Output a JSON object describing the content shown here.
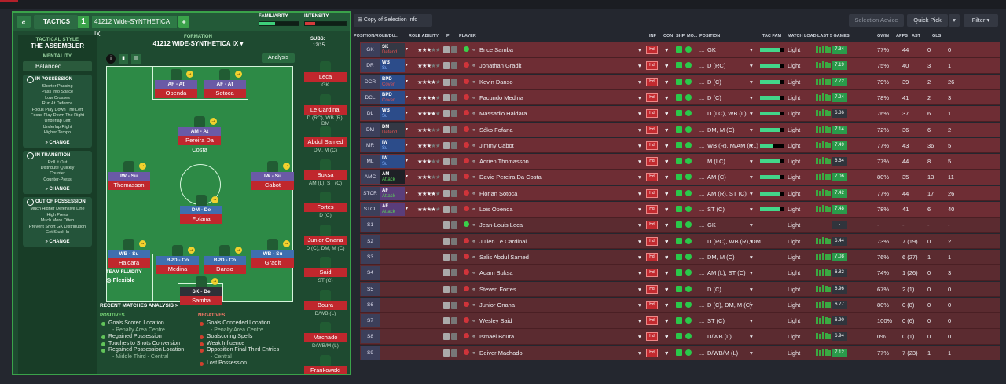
{
  "left": {
    "tab": "TACTICS",
    "slot": "1",
    "tactic_name": "41212 Wide-SYNTHETICA IX",
    "familiarity_label": "FAMILIARITY",
    "intensity_label": "INTENSITY",
    "style_label": "TACTICAL STYLE",
    "style": "THE ASSEMBLER",
    "mentality_label": "MENTALITY",
    "mentality": "Balanced",
    "in_possession": {
      "title": "IN POSSESSION",
      "items": [
        "Shorter Passing",
        "Pass Into Space",
        "Low Crosses",
        "Run At Defence",
        "Focus Play Down The Left",
        "Focus Play Down The Right",
        "Underlap Left",
        "Underlap Right",
        "Higher Tempo"
      ],
      "change": "CHANGE"
    },
    "in_transition": {
      "title": "IN TRANSITION",
      "items": [
        "Roll It Out",
        "Distribute Quickly",
        "Counter",
        "Counter-Press"
      ],
      "change": "CHANGE"
    },
    "out_of_possession": {
      "title": "OUT OF POSSESSION",
      "items": [
        "Much Higher Defensive Line",
        "High Press",
        "Much More Often",
        "Prevent Short GK Distribution",
        "Get Stuck In"
      ],
      "change": "CHANGE"
    },
    "formation_label": "FORMATION",
    "formation": "41212 WIDE-SYNTHETICA IX",
    "subs_label": "SUBS:",
    "subs": "12/15",
    "analysis": "Analysis",
    "fluidity_label": "TEAM FLUIDITY",
    "fluidity": "Flexible",
    "players": [
      {
        "role": "AF - At",
        "name": "Openda"
      },
      {
        "role": "AF - At",
        "name": "Sotoca"
      },
      {
        "role": "AM - At",
        "name": "Pereira Da Costa"
      },
      {
        "role": "IW - Su",
        "name": "Thomasson"
      },
      {
        "role": "IW - Su",
        "name": "Cabot"
      },
      {
        "role": "DM - De",
        "name": "Fofana"
      },
      {
        "role": "WB - Su",
        "name": "Haidara"
      },
      {
        "role": "BPD - Co",
        "name": "Medina"
      },
      {
        "role": "BPD - Co",
        "name": "Danso"
      },
      {
        "role": "WB - Su",
        "name": "Gradit"
      },
      {
        "role": "SK - De",
        "name": "Samba"
      }
    ],
    "subs_list": [
      {
        "name": "Leca",
        "pos": "GK"
      },
      {
        "name": "Le Cardinal",
        "pos": "D (RC), WB (R), DM"
      },
      {
        "name": "Abdul Samed",
        "pos": "DM, M (C)"
      },
      {
        "name": "Buksa",
        "pos": "AM (L), ST (C)"
      },
      {
        "name": "Fortes",
        "pos": "D (C)"
      },
      {
        "name": "Junior Onana",
        "pos": "D (C), DM, M (C)"
      },
      {
        "name": "Said",
        "pos": "ST (C)"
      },
      {
        "name": "Boura",
        "pos": "D/WB (L)"
      },
      {
        "name": "Machado",
        "pos": "D/WB/M (L)"
      },
      {
        "name": "Frankowski",
        "pos": ""
      }
    ],
    "recent": {
      "title": "RECENT MATCHES ANALYSIS >",
      "pos_label": "POSITIVES",
      "neg_label": "NEGATIVES",
      "positives": [
        {
          "t": "Goals Scored Location"
        },
        {
          "t": "- Penalty Area Centre",
          "s": true
        },
        {
          "t": "Regained Possession"
        },
        {
          "t": "Touches to Shots Conversion"
        },
        {
          "t": "Regained Possession Location"
        },
        {
          "t": "- Middle Third - Central",
          "s": true
        }
      ],
      "negatives": [
        {
          "t": "Goals Conceded Location"
        },
        {
          "t": "- Penalty Area Centre",
          "s": true
        },
        {
          "t": "Goalscoring Spells"
        },
        {
          "t": "Weak Influence"
        },
        {
          "t": "Opposition Final Third Entries"
        },
        {
          "t": "- Central",
          "s": true
        },
        {
          "t": "Lost Possession"
        }
      ]
    }
  },
  "right": {
    "copy_btn": "Copy of Selection Info",
    "sel_advice": "Selection Advice",
    "quick_pick": "Quick Pick",
    "filter": "Filter",
    "columns": [
      "POSITION/ROLE/DU...",
      "ROLE ABILITY",
      "PI",
      "PLAYER",
      "INF",
      "CON",
      "SHP",
      "MO...",
      "POSITION",
      "TAC FAM",
      "MATCH LOAD",
      "LAST 5 GAMES",
      "GWIN",
      "APPS",
      "AST",
      "GLS"
    ],
    "rows": [
      {
        "pos": "GK",
        "role": "SK",
        "duty": "Defend",
        "dc": "#e05050",
        "stars": 3,
        "player": "Brice Samba",
        "positions": "GK",
        "load": "Light",
        "avg": "7.34",
        "gwin": "77%",
        "apps": "44",
        "ast": "0",
        "gls": "0",
        "tf": 0.85
      },
      {
        "pos": "DR",
        "role": "WB",
        "duty": "Su",
        "dc": "#7fb0ff",
        "stars": 3,
        "player": "Jonathan Gradit",
        "positions": "D (RC)",
        "load": "Light",
        "avg": "7.19",
        "gwin": "75%",
        "apps": "40",
        "ast": "3",
        "gls": "1",
        "tf": 0.85
      },
      {
        "pos": "DCR",
        "role": "BPD",
        "duty": "Cover",
        "dc": "#e05050",
        "stars": 4,
        "player": "Kevin Danso",
        "positions": "D (C)",
        "load": "Light",
        "avg": "7.72",
        "gwin": "79%",
        "apps": "39",
        "ast": "2",
        "gls": "26",
        "tf": 0.85
      },
      {
        "pos": "DCL",
        "role": "BPD",
        "duty": "Cover",
        "dc": "#e05050",
        "stars": 3.5,
        "player": "Facundo Medina",
        "positions": "D (C)",
        "load": "Light",
        "avg": "7.24",
        "gwin": "78%",
        "apps": "41",
        "ast": "2",
        "gls": "3",
        "tf": 0.85
      },
      {
        "pos": "DL",
        "role": "WB",
        "duty": "Su",
        "dc": "#7fb0ff",
        "stars": 3.5,
        "player": "Massadio Haidara",
        "positions": "D (LC), WB (L)",
        "load": "Light",
        "avg": "6.86",
        "gwin": "76%",
        "apps": "37",
        "ast": "6",
        "gls": "1",
        "tf": 0.85
      },
      {
        "pos": "DM",
        "role": "DM",
        "duty": "Defend",
        "dc": "#e05050",
        "stars": 3,
        "player": "Séko Fofana",
        "positions": "DM, M (C)",
        "load": "Light",
        "avg": "7.14",
        "gwin": "72%",
        "apps": "36",
        "ast": "6",
        "gls": "2",
        "tf": 0.85
      },
      {
        "pos": "MR",
        "role": "IW",
        "duty": "Su",
        "dc": "#7fb0ff",
        "stars": 3,
        "player": "Jimmy Cabot",
        "positions": "WB (R), M/AM (RL)",
        "load": "Light",
        "avg": "7.49",
        "gwin": "77%",
        "apps": "43",
        "ast": "36",
        "gls": "5",
        "tf": 0.55
      },
      {
        "pos": "ML",
        "role": "IW",
        "duty": "Su",
        "dc": "#7fb0ff",
        "stars": 3,
        "player": "Adrien Thomasson",
        "positions": "M (LC)",
        "load": "Light",
        "avg": "6.64",
        "gwin": "77%",
        "apps": "44",
        "ast": "8",
        "gls": "5",
        "tf": 0.85
      },
      {
        "pos": "AMC",
        "role": "AM",
        "duty": "Attack",
        "dc": "#5ad05a",
        "stars": 3,
        "player": "David Pereira Da Costa",
        "positions": "AM (C)",
        "load": "Light",
        "avg": "7.06",
        "gwin": "80%",
        "apps": "35",
        "ast": "13",
        "gls": "11",
        "tf": 0.85
      },
      {
        "pos": "STCR",
        "role": "AF",
        "duty": "Attack",
        "dc": "#5ad05a",
        "stars": 4,
        "player": "Florian Sotoca",
        "positions": "AM (R), ST (C)",
        "load": "Light",
        "avg": "7.42",
        "gwin": "77%",
        "apps": "44",
        "ast": "17",
        "gls": "26",
        "tf": 0.85
      },
      {
        "pos": "STCL",
        "role": "AF",
        "duty": "Attack",
        "dc": "#5ad05a",
        "stars": 4,
        "player": "Lois Openda",
        "positions": "ST (C)",
        "load": "Light",
        "avg": "7.48",
        "gwin": "78%",
        "apps": "41",
        "ast": "6",
        "gls": "40",
        "tf": 0.85
      },
      {
        "pos": "S1",
        "player": "Jean-Louis Leca",
        "positions": "GK",
        "load": "Light",
        "avg": "-",
        "gwin": "-",
        "apps": "-",
        "ast": "-",
        "gls": "-"
      },
      {
        "pos": "S2",
        "player": "Julien Le Cardinal",
        "positions": "D (RC), WB (R), DM",
        "load": "Light",
        "avg": "6.44",
        "gwin": "73%",
        "apps": "7 (19)",
        "ast": "0",
        "gls": "2"
      },
      {
        "pos": "S3",
        "player": "Salis Abdul Samed",
        "positions": "DM, M (C)",
        "load": "Light",
        "avg": "7.08",
        "gwin": "76%",
        "apps": "6 (27)",
        "ast": "1",
        "gls": "1"
      },
      {
        "pos": "S4",
        "player": "Adam Buksa",
        "positions": "AM (L), ST (C)",
        "load": "Light",
        "avg": "6.82",
        "gwin": "74%",
        "apps": "1 (26)",
        "ast": "0",
        "gls": "3"
      },
      {
        "pos": "S5",
        "player": "Steven Fortes",
        "positions": "D (C)",
        "load": "Light",
        "avg": "6.96",
        "gwin": "67%",
        "apps": "2 (1)",
        "ast": "0",
        "gls": "0"
      },
      {
        "pos": "S6",
        "player": "Junior Onana",
        "positions": "D (C), DM, M (C)",
        "load": "Light",
        "avg": "6.77",
        "gwin": "80%",
        "apps": "0 (8)",
        "ast": "0",
        "gls": "0"
      },
      {
        "pos": "S7",
        "player": "Wesley Said",
        "positions": "ST (C)",
        "load": "Light",
        "avg": "6.90",
        "gwin": "100%",
        "apps": "0 (6)",
        "ast": "0",
        "gls": "0"
      },
      {
        "pos": "S8",
        "player": "Ismaël Boura",
        "positions": "D/WB (L)",
        "load": "Light",
        "avg": "6.94",
        "gwin": "0%",
        "apps": "0 (1)",
        "ast": "0",
        "gls": "0"
      },
      {
        "pos": "S9",
        "player": "Deiver Machado",
        "positions": "D/WB/M (L)",
        "load": "Light",
        "avg": "7.12",
        "gwin": "77%",
        "apps": "7 (23)",
        "ast": "1",
        "gls": "1"
      }
    ]
  }
}
